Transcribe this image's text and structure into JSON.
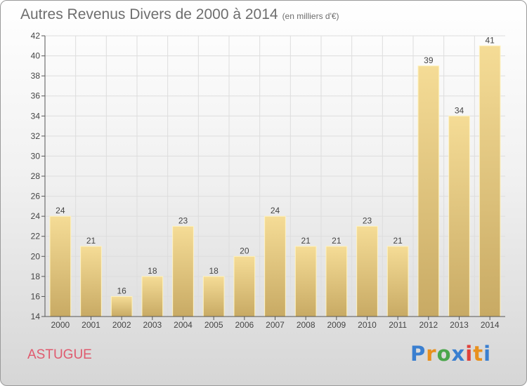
{
  "title": "Autres Revenus Divers de 2000 à 2014",
  "subtitle": "(en milliers d'€)",
  "commune": "ASTUGUE",
  "brand": {
    "text": "Proxiti",
    "letter_colors": [
      "#3a7fd0",
      "#e8901e",
      "#4aa64b",
      "#3a7fd0",
      "#e0413a",
      "#e8901e",
      "#3a7fd0"
    ]
  },
  "chart_data": {
    "type": "bar",
    "title": "Autres Revenus Divers de 2000 à 2014",
    "subtitle": "(en milliers d'€)",
    "categories": [
      "2000",
      "2001",
      "2002",
      "2003",
      "2004",
      "2005",
      "2006",
      "2007",
      "2008",
      "2009",
      "2010",
      "2011",
      "2012",
      "2013",
      "2014"
    ],
    "values": [
      24,
      21,
      16,
      18,
      23,
      18,
      20,
      24,
      21,
      21,
      23,
      21,
      39,
      34,
      41
    ],
    "ylim": [
      14,
      42
    ],
    "yticks": [
      14,
      16,
      18,
      20,
      22,
      24,
      26,
      28,
      30,
      32,
      34,
      36,
      38,
      40,
      42
    ],
    "grid": true,
    "bar_color_top": "#f5dc96",
    "bar_color_bottom": "#c8aa64"
  }
}
